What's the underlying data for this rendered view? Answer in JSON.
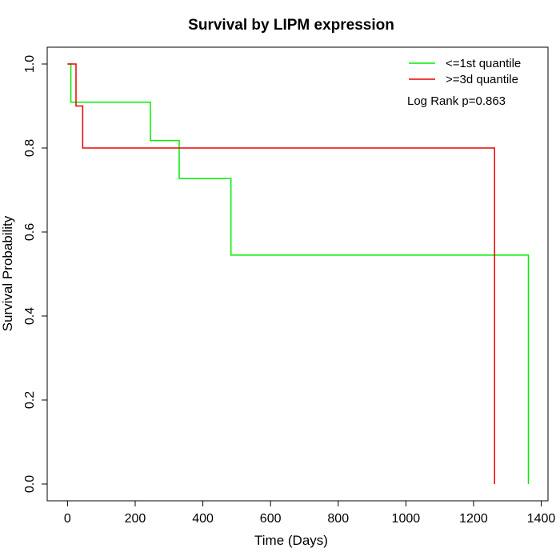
{
  "chart_data": {
    "type": "line",
    "title": "Survival by LIPM expression",
    "xlabel": "Time (Days)",
    "ylabel": "Survival Probability",
    "xlim": [
      -60,
      1420
    ],
    "ylim": [
      -0.04,
      1.04
    ],
    "x_ticks": [
      0,
      200,
      400,
      600,
      800,
      1000,
      1200,
      1400
    ],
    "y_ticks": [
      0.0,
      0.2,
      0.4,
      0.6,
      0.8,
      1.0
    ],
    "x_tick_labels": [
      "0",
      "200",
      "400",
      "600",
      "800",
      "1000",
      "1200",
      "1400"
    ],
    "y_tick_labels": [
      "0.0",
      "0.2",
      "0.4",
      "0.6",
      "0.8",
      "1.0"
    ],
    "grid": false,
    "legend_position": "top-right",
    "annotation": "Log Rank p=0.863",
    "series": [
      {
        "name": "<=1st quantile",
        "color": "#00ee00",
        "step": true,
        "points": [
          [
            0,
            1.0
          ],
          [
            10,
            1.0
          ],
          [
            10,
            0.909
          ],
          [
            245,
            0.909
          ],
          [
            245,
            0.818
          ],
          [
            330,
            0.818
          ],
          [
            330,
            0.727
          ],
          [
            483,
            0.727
          ],
          [
            483,
            0.545
          ],
          [
            1362,
            0.545
          ],
          [
            1362,
            0.0
          ]
        ]
      },
      {
        "name": ">=3d quantile",
        "color": "#ee0000",
        "step": true,
        "points": [
          [
            0,
            1.0
          ],
          [
            25,
            1.0
          ],
          [
            25,
            0.9
          ],
          [
            45,
            0.9
          ],
          [
            45,
            0.8
          ],
          [
            1262,
            0.8
          ],
          [
            1262,
            0.0
          ]
        ]
      }
    ]
  }
}
